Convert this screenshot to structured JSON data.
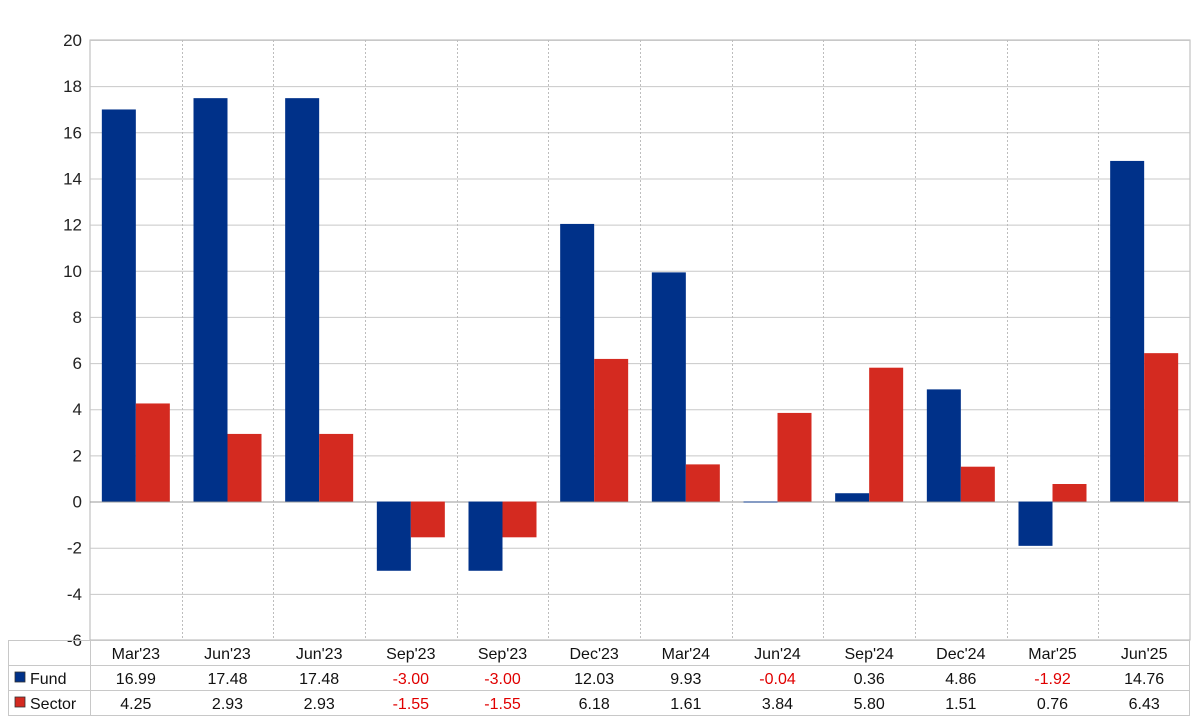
{
  "chart_data": {
    "type": "bar",
    "categories": [
      "Mar'23",
      "Jun'23",
      "Jun'23",
      "Sep'23",
      "Sep'23",
      "Dec'23",
      "Mar'24",
      "Jun'24",
      "Sep'24",
      "Dec'24",
      "Mar'25",
      "Jun'25"
    ],
    "series": [
      {
        "name": "Fund",
        "color": "#003189",
        "values": [
          16.99,
          17.48,
          17.48,
          -3.0,
          -3.0,
          12.03,
          9.93,
          -0.04,
          0.36,
          4.86,
          -1.92,
          14.76
        ],
        "labels": [
          "16.99",
          "17.48",
          "17.48",
          "-3.00",
          "-3.00",
          "12.03",
          "9.93",
          "-0.04",
          "0.36",
          "4.86",
          "-1.92",
          "14.76"
        ]
      },
      {
        "name": "Sector",
        "color": "#d42a20",
        "values": [
          4.25,
          2.93,
          2.93,
          -1.55,
          -1.55,
          6.18,
          1.61,
          3.84,
          5.8,
          1.51,
          0.76,
          6.43
        ],
        "labels": [
          "4.25",
          "2.93",
          "2.93",
          "-1.55",
          "-1.55",
          "6.18",
          "1.61",
          "3.84",
          "5.80",
          "1.51",
          "0.76",
          "6.43"
        ]
      }
    ],
    "ylim": [
      -6,
      20
    ],
    "yticks": [
      "20",
      "18",
      "16",
      "14",
      "12",
      "10",
      "8",
      "6",
      "4",
      "2",
      "0",
      "-2",
      "-4",
      "-6"
    ],
    "negative_label_color": "#e00000",
    "grid": true,
    "legend": "data-table-bottom"
  }
}
